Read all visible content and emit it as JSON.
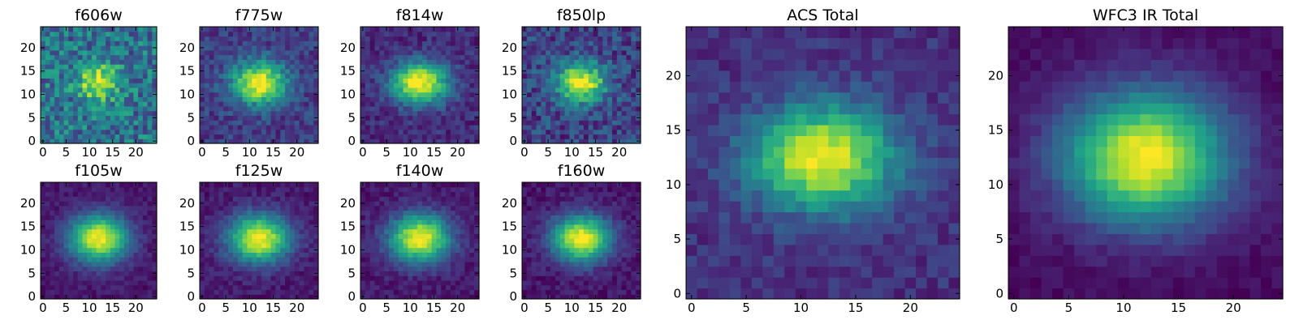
{
  "chart_data": [
    {
      "type": "heatmap",
      "title": "f606w",
      "x_ticks": [
        "0",
        "5",
        "10",
        "15",
        "20"
      ],
      "y_ticks": [
        "0",
        "5",
        "10",
        "15",
        "20"
      ],
      "xlim": [
        0,
        25
      ],
      "ylim": [
        0,
        25
      ],
      "grid_size": 25,
      "center": [
        12,
        12.5
      ],
      "sigma": [
        3.0,
        2.6
      ],
      "background": 0.38,
      "noise": 0.22,
      "colormap": "viridis"
    },
    {
      "type": "heatmap",
      "title": "f775w",
      "x_ticks": [
        "0",
        "5",
        "10",
        "15",
        "20"
      ],
      "y_ticks": [
        "0",
        "5",
        "10",
        "15",
        "20"
      ],
      "xlim": [
        0,
        25
      ],
      "ylim": [
        0,
        25
      ],
      "grid_size": 25,
      "center": [
        12,
        12.5
      ],
      "sigma": [
        4.0,
        3.2
      ],
      "background": 0.18,
      "noise": 0.12,
      "colormap": "viridis"
    },
    {
      "type": "heatmap",
      "title": "f814w",
      "x_ticks": [
        "0",
        "5",
        "10",
        "15",
        "20"
      ],
      "y_ticks": [
        "0",
        "5",
        "10",
        "15",
        "20"
      ],
      "xlim": [
        0,
        25
      ],
      "ylim": [
        0,
        25
      ],
      "grid_size": 25,
      "center": [
        12,
        12.5
      ],
      "sigma": [
        4.2,
        3.2
      ],
      "background": 0.12,
      "noise": 0.1,
      "colormap": "viridis"
    },
    {
      "type": "heatmap",
      "title": "f850lp",
      "x_ticks": [
        "0",
        "5",
        "10",
        "15",
        "20"
      ],
      "y_ticks": [
        "0",
        "5",
        "10",
        "15",
        "20"
      ],
      "xlim": [
        0,
        25
      ],
      "ylim": [
        0,
        25
      ],
      "grid_size": 25,
      "center": [
        12,
        12.5
      ],
      "sigma": [
        3.6,
        3.0
      ],
      "background": 0.2,
      "noise": 0.16,
      "colormap": "viridis"
    },
    {
      "type": "heatmap",
      "title": "f105w",
      "x_ticks": [
        "0",
        "5",
        "10",
        "15",
        "20"
      ],
      "y_ticks": [
        "0",
        "5",
        "10",
        "15",
        "20"
      ],
      "xlim": [
        0,
        25
      ],
      "ylim": [
        0,
        25
      ],
      "grid_size": 25,
      "center": [
        12,
        12.5
      ],
      "sigma": [
        4.5,
        3.6
      ],
      "background": 0.06,
      "noise": 0.06,
      "colormap": "viridis"
    },
    {
      "type": "heatmap",
      "title": "f125w",
      "x_ticks": [
        "0",
        "5",
        "10",
        "15",
        "20"
      ],
      "y_ticks": [
        "0",
        "5",
        "10",
        "15",
        "20"
      ],
      "xlim": [
        0,
        25
      ],
      "ylim": [
        0,
        25
      ],
      "grid_size": 25,
      "center": [
        12,
        12.5
      ],
      "sigma": [
        4.5,
        3.6
      ],
      "background": 0.07,
      "noise": 0.07,
      "colormap": "viridis"
    },
    {
      "type": "heatmap",
      "title": "f140w",
      "x_ticks": [
        "0",
        "5",
        "10",
        "15",
        "20"
      ],
      "y_ticks": [
        "0",
        "5",
        "10",
        "15",
        "20"
      ],
      "xlim": [
        0,
        25
      ],
      "ylim": [
        0,
        25
      ],
      "grid_size": 25,
      "center": [
        12,
        12.5
      ],
      "sigma": [
        4.5,
        3.6
      ],
      "background": 0.07,
      "noise": 0.07,
      "colormap": "viridis"
    },
    {
      "type": "heatmap",
      "title": "f160w",
      "x_ticks": [
        "0",
        "5",
        "10",
        "15",
        "20"
      ],
      "y_ticks": [
        "0",
        "5",
        "10",
        "15",
        "20"
      ],
      "xlim": [
        0,
        25
      ],
      "ylim": [
        0,
        25
      ],
      "grid_size": 25,
      "center": [
        12,
        12.5
      ],
      "sigma": [
        4.4,
        3.5
      ],
      "background": 0.06,
      "noise": 0.07,
      "colormap": "viridis"
    },
    {
      "type": "heatmap",
      "title": "ACS Total",
      "x_ticks": [
        "0",
        "5",
        "10",
        "15",
        "20"
      ],
      "y_ticks": [
        "0",
        "5",
        "10",
        "15",
        "20"
      ],
      "xlim": [
        0,
        25
      ],
      "ylim": [
        0,
        25
      ],
      "grid_size": 25,
      "center": [
        12,
        12.5
      ],
      "sigma": [
        4.6,
        3.3
      ],
      "background": 0.14,
      "noise": 0.08,
      "colormap": "viridis"
    },
    {
      "type": "heatmap",
      "title": "WFC3 IR Total",
      "x_ticks": [
        "0",
        "5",
        "10",
        "15",
        "20"
      ],
      "y_ticks": [
        "0",
        "5",
        "10",
        "15",
        "20"
      ],
      "xlim": [
        0,
        25
      ],
      "ylim": [
        0,
        25
      ],
      "grid_size": 25,
      "center": [
        12,
        12.5
      ],
      "sigma": [
        5.2,
        4.2
      ],
      "background": 0.03,
      "noise": 0.04,
      "colormap": "viridis"
    }
  ]
}
